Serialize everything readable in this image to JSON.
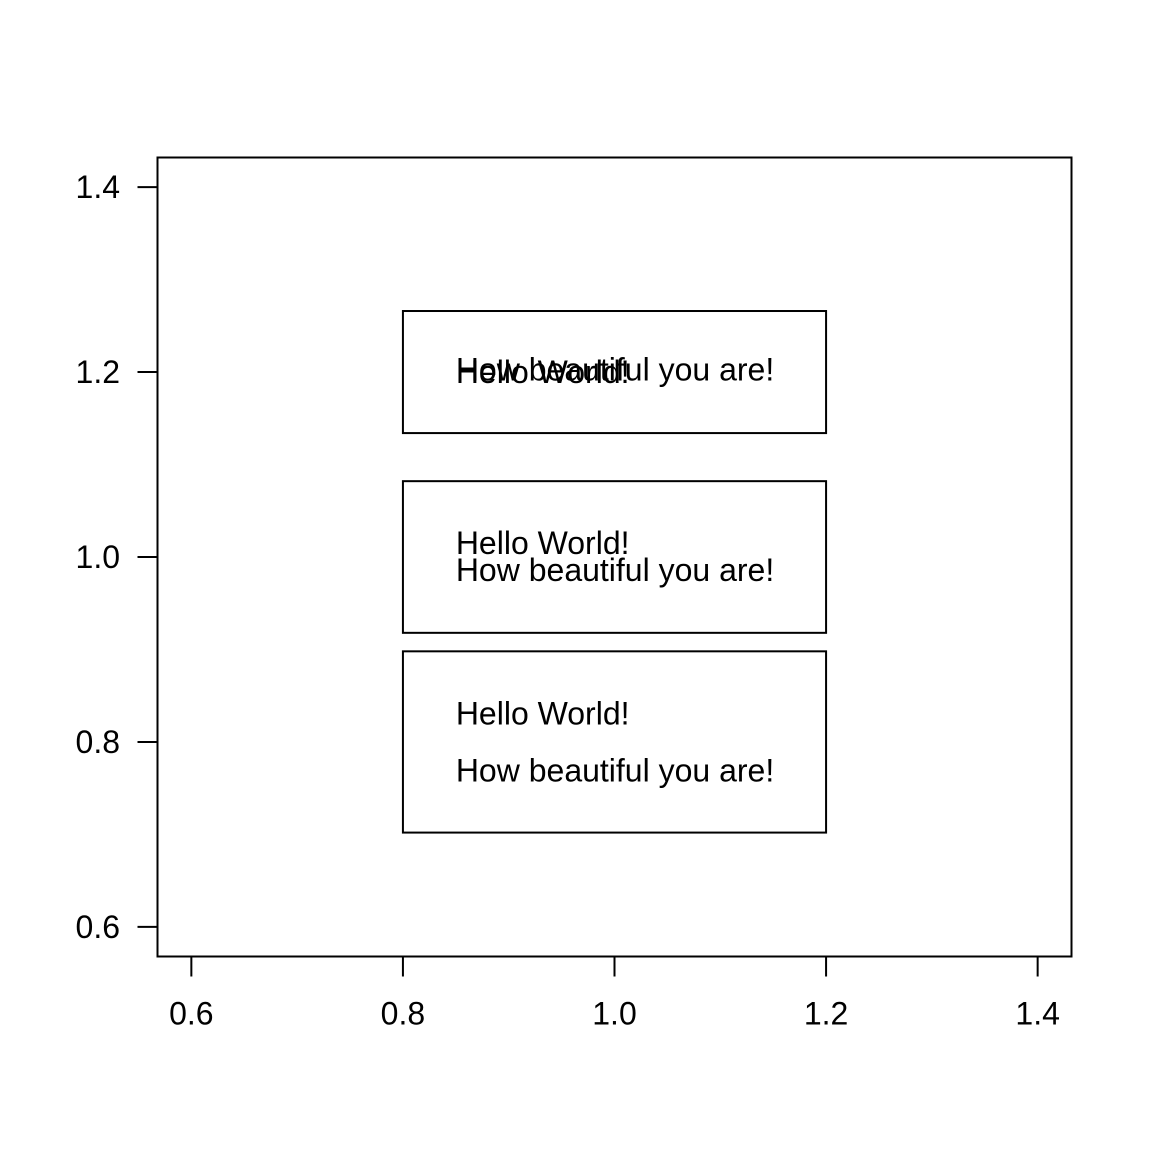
{
  "chart_data": {
    "type": "scatter",
    "title": "",
    "xlabel": "",
    "ylabel": "",
    "xlim": [
      0.568,
      1.432
    ],
    "ylim": [
      0.568,
      1.432
    ],
    "grid": false,
    "x_ticks": [
      {
        "value": 0.6,
        "label": "0.6"
      },
      {
        "value": 0.8,
        "label": "0.8"
      },
      {
        "value": 1.0,
        "label": "1.0"
      },
      {
        "value": 1.2,
        "label": "1.2"
      },
      {
        "value": 1.4,
        "label": "1.4"
      }
    ],
    "y_ticks": [
      {
        "value": 0.6,
        "label": "0.6"
      },
      {
        "value": 0.8,
        "label": "0.8"
      },
      {
        "value": 1.0,
        "label": "1.0"
      },
      {
        "value": 1.2,
        "label": "1.2"
      },
      {
        "value": 1.4,
        "label": "1.4"
      }
    ],
    "boxes": [
      {
        "x0": 0.8,
        "x1": 1.2,
        "y0": 1.134,
        "y1": 1.266,
        "lines": [
          {
            "x": 0.85,
            "y": 1.2,
            "text": "Hello World!"
          },
          {
            "x": 0.85,
            "y": 1.203,
            "text": "How beautiful you are!"
          }
        ]
      },
      {
        "x0": 0.8,
        "x1": 1.2,
        "y0": 0.918,
        "y1": 1.082,
        "lines": [
          {
            "x": 0.85,
            "y": 1.015,
            "text": "Hello World!"
          },
          {
            "x": 0.85,
            "y": 0.986,
            "text": "How beautiful you are!"
          }
        ]
      },
      {
        "x0": 0.8,
        "x1": 1.2,
        "y0": 0.702,
        "y1": 0.898,
        "lines": [
          {
            "x": 0.85,
            "y": 0.831,
            "text": "Hello World!"
          },
          {
            "x": 0.85,
            "y": 0.769,
            "text": "How beautiful you are!"
          }
        ]
      }
    ]
  }
}
